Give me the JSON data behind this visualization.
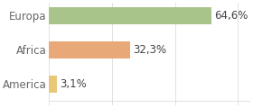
{
  "categories": [
    "America",
    "Africa",
    "Europa"
  ],
  "values": [
    3.1,
    32.3,
    64.6
  ],
  "labels": [
    "3,1%",
    "32,3%",
    "64,6%"
  ],
  "bar_colors": [
    "#e8c878",
    "#e8a878",
    "#a8c48a"
  ],
  "background_color": "#ffffff",
  "xlim": [
    0,
    80
  ],
  "bar_height": 0.5,
  "label_fontsize": 8.5,
  "tick_fontsize": 8.5,
  "grid_color": "#dddddd",
  "tick_label_color": "#666666",
  "xticks": [
    0,
    25,
    50,
    75
  ]
}
